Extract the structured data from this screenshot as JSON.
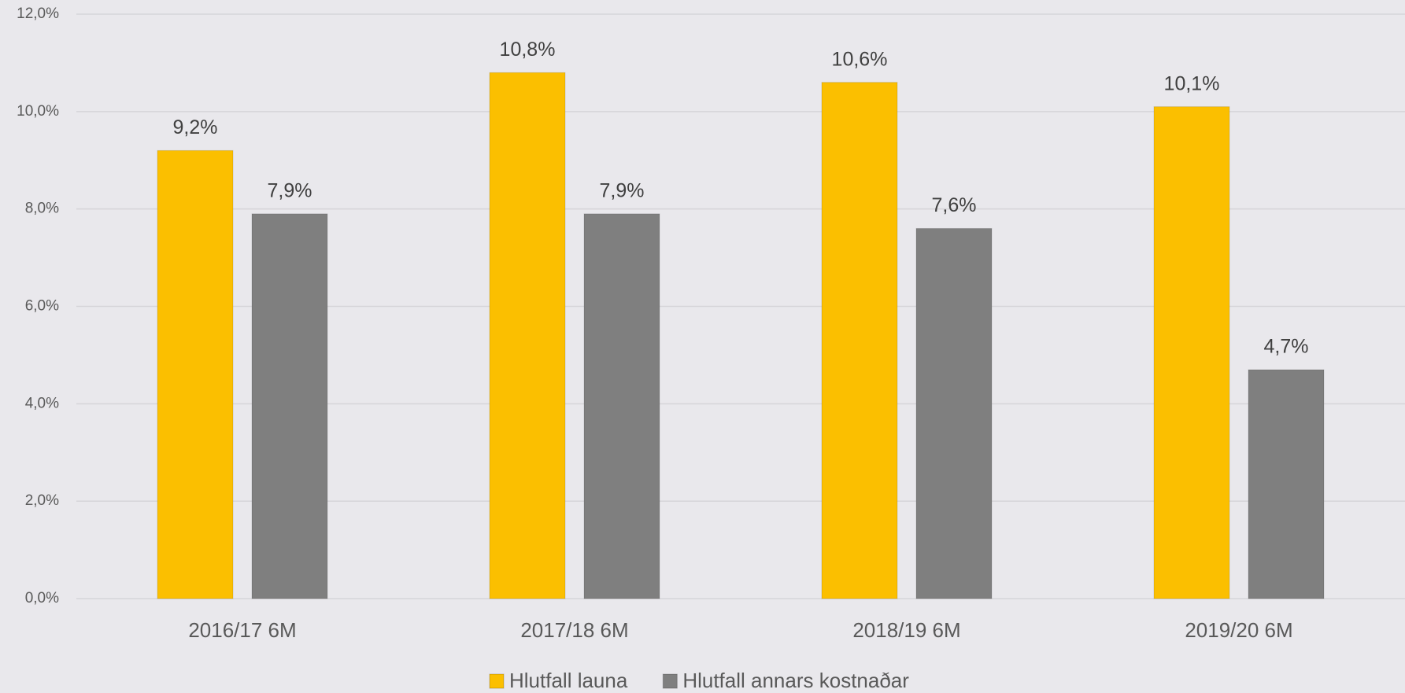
{
  "chart_data": {
    "type": "bar",
    "categories": [
      "2016/17 6M",
      "2017/18 6M",
      "2018/19 6M",
      "2019/20 6M"
    ],
    "series": [
      {
        "name": "Hlutfall launa",
        "color": "#fbbf00",
        "values": [
          9.2,
          10.8,
          10.6,
          10.1
        ],
        "value_labels": [
          "9,2%",
          "10,8%",
          "10,6%",
          "10,1%"
        ]
      },
      {
        "name": "Hlutfall annars kostnaðar",
        "color": "#7f7f7f",
        "values": [
          7.9,
          7.9,
          7.6,
          4.7
        ],
        "value_labels": [
          "7,9%",
          "7,9%",
          "7,6%",
          "4,7%"
        ]
      }
    ],
    "ylim": [
      0,
      12
    ],
    "yticks": [
      {
        "value": 0,
        "label": "0,0%"
      },
      {
        "value": 2,
        "label": "2,0%"
      },
      {
        "value": 4,
        "label": "4,0%"
      },
      {
        "value": 6,
        "label": "6,0%"
      },
      {
        "value": 8,
        "label": "8,0%"
      },
      {
        "value": 10,
        "label": "10,0%"
      },
      {
        "value": 12,
        "label": "12,0%"
      }
    ],
    "grid": true,
    "legend": "bottom"
  }
}
